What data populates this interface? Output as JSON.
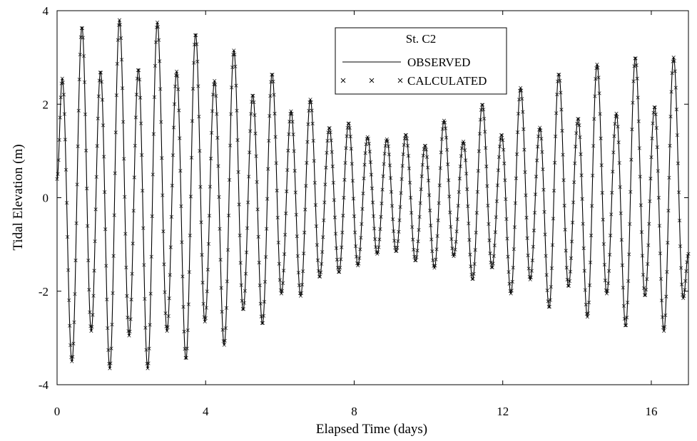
{
  "chart_data": {
    "type": "line",
    "title": "",
    "xlabel": "Elapsed Time (days)",
    "ylabel": "Tidal Elevation (m)",
    "xlim": [
      0,
      17
    ],
    "ylim": [
      -4,
      4
    ],
    "xticks": [
      0,
      4,
      8,
      12,
      16
    ],
    "yticks": [
      -4,
      -2,
      0,
      2,
      4
    ],
    "xtick_labels": [
      "0",
      "4",
      "8",
      "12",
      "16"
    ],
    "ytick_labels": [
      "-4",
      "-2",
      "0",
      "2",
      "4"
    ],
    "grid": false,
    "legend": {
      "title": "St. C2",
      "placement": "top-center",
      "entries": [
        "OBSERVED",
        "CALCULATED"
      ]
    },
    "series": [
      {
        "name": "OBSERVED",
        "style": "solid-line",
        "color": "#000000",
        "extrema": [
          {
            "x": 0.0,
            "y": 0.4
          },
          {
            "x": 0.14,
            "y": 2.55
          },
          {
            "x": 0.4,
            "y": -3.5
          },
          {
            "x": 0.67,
            "y": 3.65
          },
          {
            "x": 0.92,
            "y": -2.85
          },
          {
            "x": 1.17,
            "y": 2.7
          },
          {
            "x": 1.42,
            "y": -3.65
          },
          {
            "x": 1.68,
            "y": 3.8
          },
          {
            "x": 1.94,
            "y": -2.95
          },
          {
            "x": 2.19,
            "y": 2.75
          },
          {
            "x": 2.44,
            "y": -3.65
          },
          {
            "x": 2.7,
            "y": 3.75
          },
          {
            "x": 2.96,
            "y": -2.85
          },
          {
            "x": 3.22,
            "y": 2.7
          },
          {
            "x": 3.47,
            "y": -3.45
          },
          {
            "x": 3.73,
            "y": 3.5
          },
          {
            "x": 3.98,
            "y": -2.65
          },
          {
            "x": 4.24,
            "y": 2.5
          },
          {
            "x": 4.5,
            "y": -3.15
          },
          {
            "x": 4.76,
            "y": 3.15
          },
          {
            "x": 5.01,
            "y": -2.4
          },
          {
            "x": 5.27,
            "y": 2.2
          },
          {
            "x": 5.53,
            "y": -2.7
          },
          {
            "x": 5.79,
            "y": 2.65
          },
          {
            "x": 6.04,
            "y": -2.05
          },
          {
            "x": 6.3,
            "y": 1.85
          },
          {
            "x": 6.56,
            "y": -2.1
          },
          {
            "x": 6.82,
            "y": 2.1
          },
          {
            "x": 7.07,
            "y": -1.7
          },
          {
            "x": 7.33,
            "y": 1.5
          },
          {
            "x": 7.59,
            "y": -1.6
          },
          {
            "x": 7.85,
            "y": 1.6
          },
          {
            "x": 8.1,
            "y": -1.45
          },
          {
            "x": 8.36,
            "y": 1.3
          },
          {
            "x": 8.62,
            "y": -1.2
          },
          {
            "x": 8.88,
            "y": 1.25
          },
          {
            "x": 9.13,
            "y": -1.15
          },
          {
            "x": 9.39,
            "y": 1.35
          },
          {
            "x": 9.65,
            "y": -1.35
          },
          {
            "x": 9.91,
            "y": 1.12
          },
          {
            "x": 10.16,
            "y": -1.5
          },
          {
            "x": 10.42,
            "y": 1.65
          },
          {
            "x": 10.68,
            "y": -1.25
          },
          {
            "x": 10.94,
            "y": 1.2
          },
          {
            "x": 11.19,
            "y": -1.75
          },
          {
            "x": 11.45,
            "y": 2.0
          },
          {
            "x": 11.71,
            "y": -1.5
          },
          {
            "x": 11.97,
            "y": 1.35
          },
          {
            "x": 12.22,
            "y": -2.05
          },
          {
            "x": 12.48,
            "y": 2.35
          },
          {
            "x": 12.74,
            "y": -1.75
          },
          {
            "x": 13.0,
            "y": 1.5
          },
          {
            "x": 13.25,
            "y": -2.35
          },
          {
            "x": 13.51,
            "y": 2.65
          },
          {
            "x": 13.77,
            "y": -1.9
          },
          {
            "x": 14.03,
            "y": 1.7
          },
          {
            "x": 14.28,
            "y": -2.55
          },
          {
            "x": 14.54,
            "y": 2.85
          },
          {
            "x": 14.8,
            "y": -2.05
          },
          {
            "x": 15.06,
            "y": 1.8
          },
          {
            "x": 15.31,
            "y": -2.75
          },
          {
            "x": 15.57,
            "y": 3.0
          },
          {
            "x": 15.83,
            "y": -2.1
          },
          {
            "x": 16.09,
            "y": 1.95
          },
          {
            "x": 16.34,
            "y": -2.85
          },
          {
            "x": 16.6,
            "y": 3.0
          },
          {
            "x": 16.86,
            "y": -2.15
          },
          {
            "x": 17.0,
            "y": -1.2
          }
        ]
      },
      {
        "name": "CALCULATED",
        "style": "x-markers",
        "color": "#000000",
        "sample_interval_days": 0.02,
        "follows": "OBSERVED"
      }
    ]
  }
}
